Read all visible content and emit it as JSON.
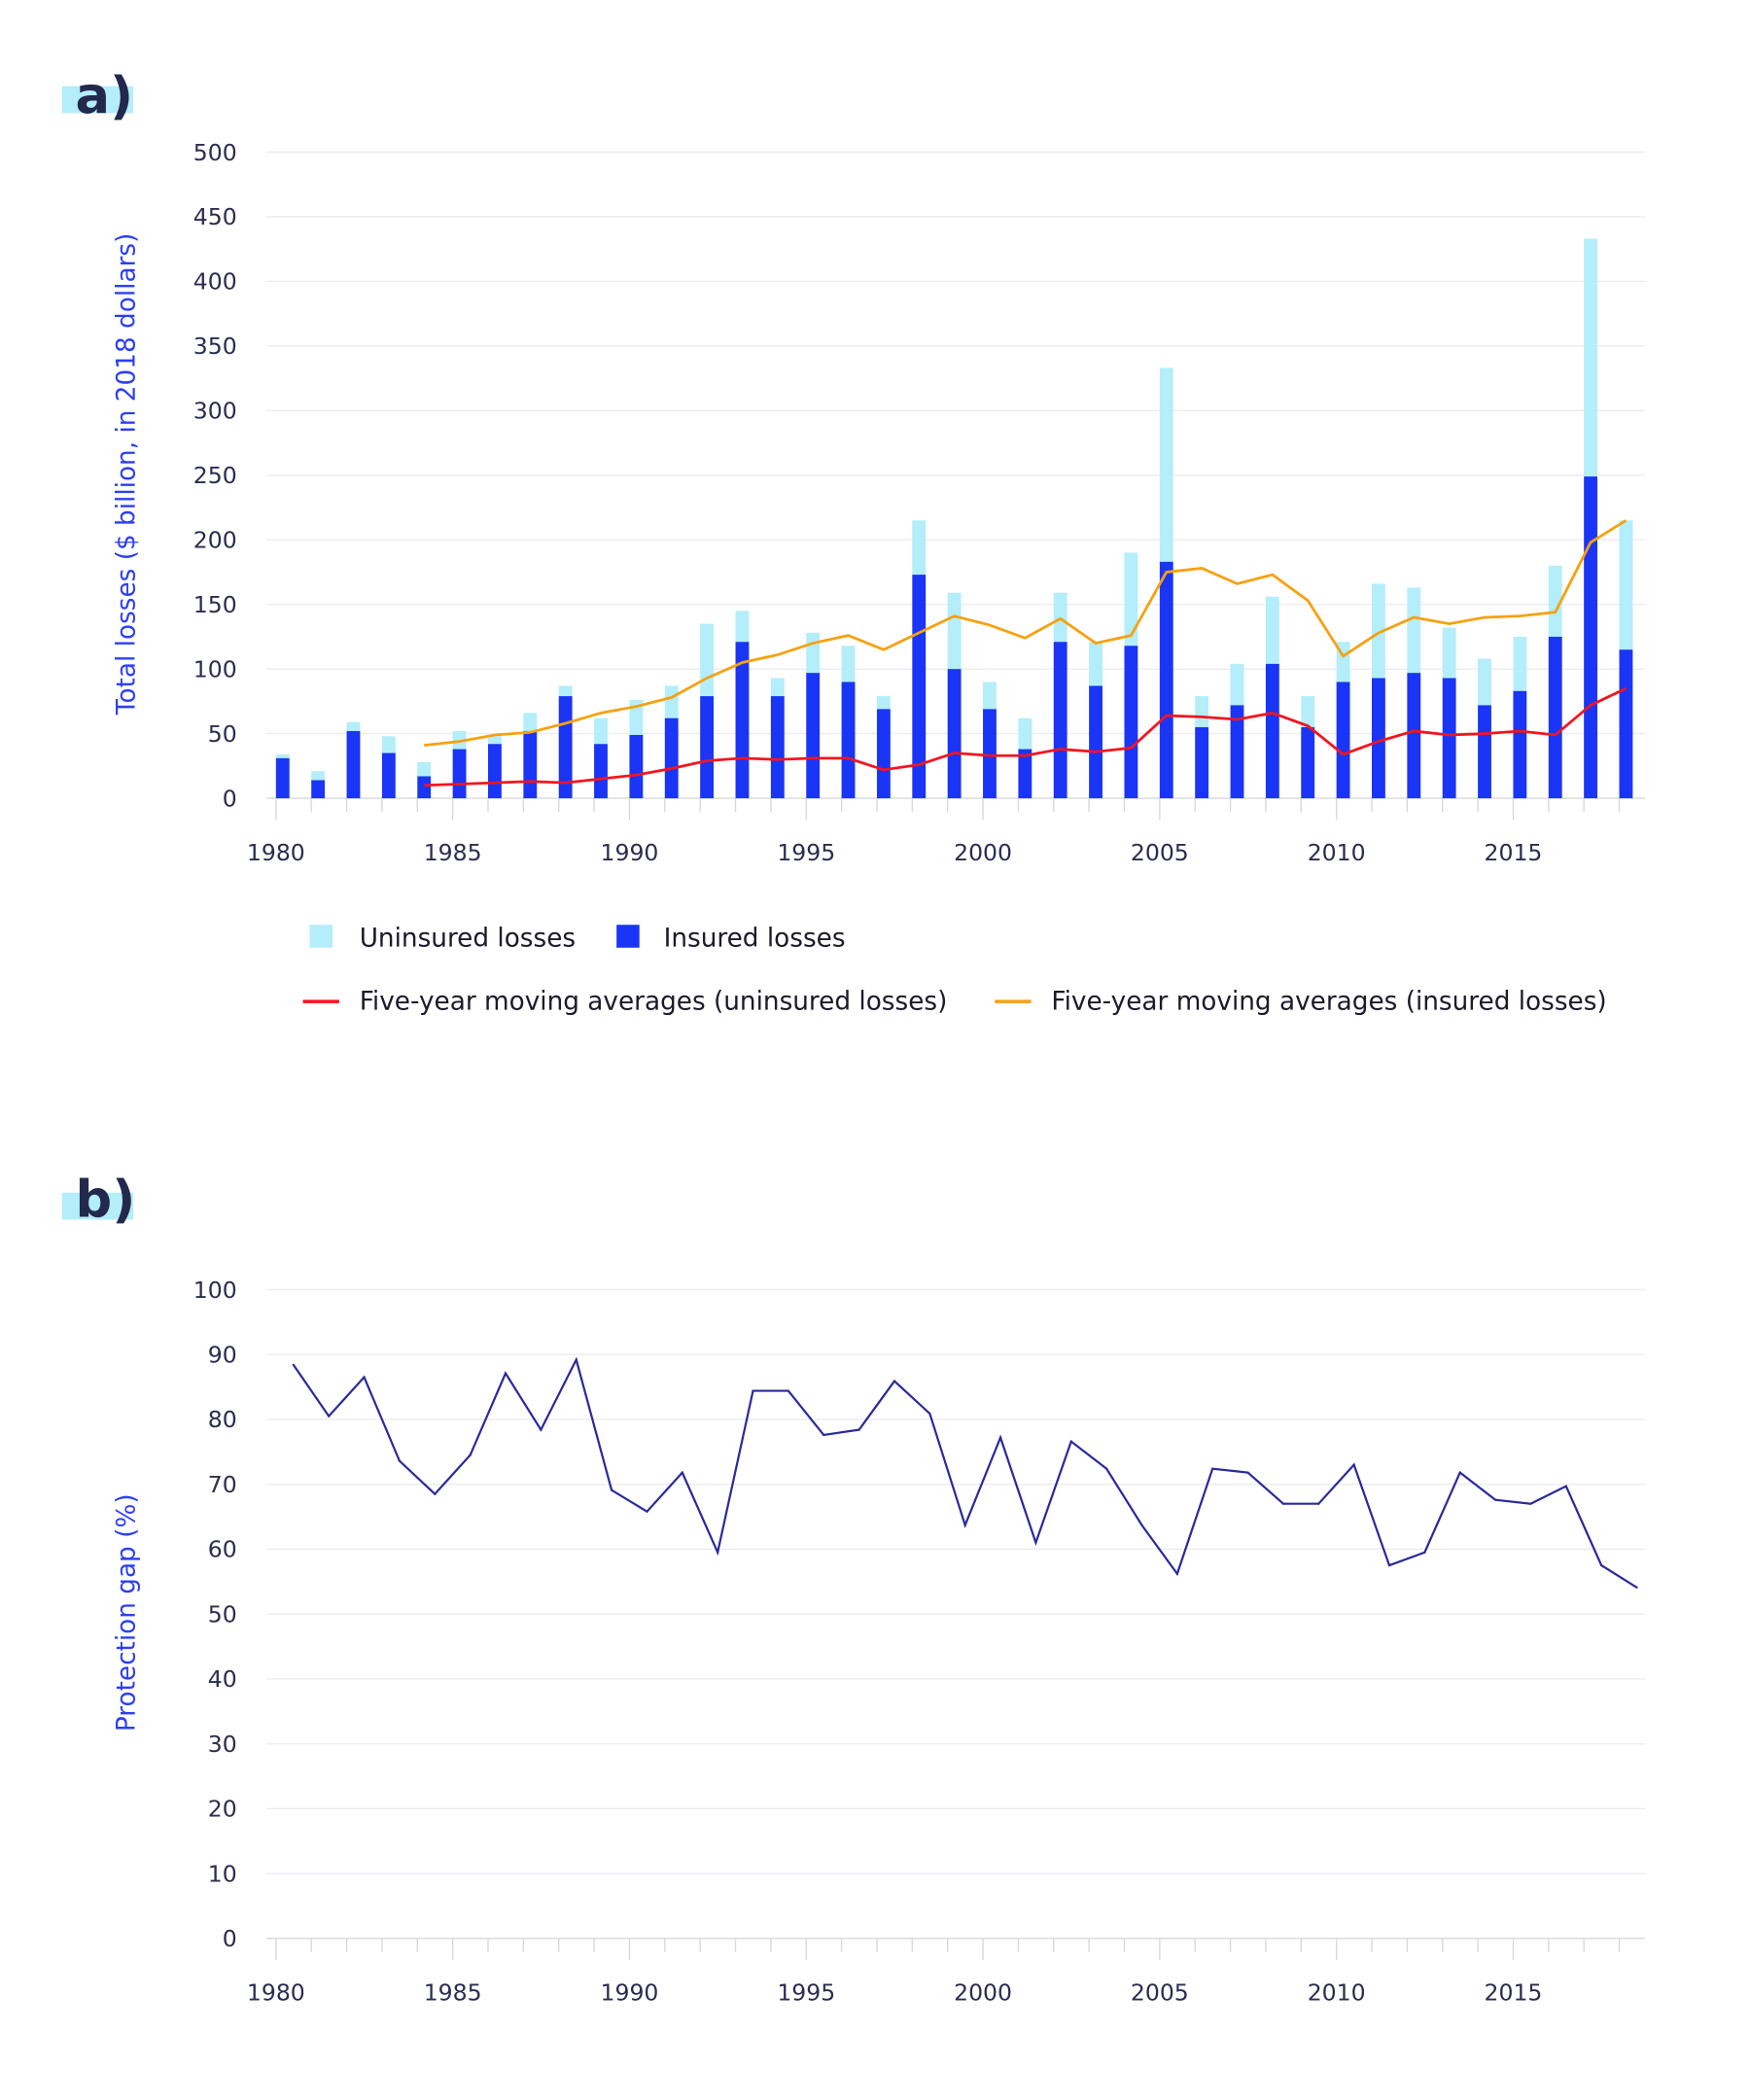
{
  "chart_data": [
    {
      "type": "bar",
      "panel_label": "a)",
      "ylabel": "Total losses ($ billion, in 2018 dollars)",
      "ylim": [
        0,
        500
      ],
      "yticks": [
        0,
        50,
        100,
        150,
        200,
        250,
        300,
        350,
        400,
        450,
        500
      ],
      "xticks": [
        1980,
        1985,
        1990,
        1995,
        2000,
        2005,
        2010,
        2015
      ],
      "grid": true,
      "stacked": true,
      "legend_placement": "bottom",
      "x": [
        1980,
        1981,
        1982,
        1983,
        1984,
        1985,
        1986,
        1987,
        1988,
        1989,
        1990,
        1991,
        1992,
        1993,
        1994,
        1995,
        1996,
        1997,
        1998,
        1999,
        2000,
        2001,
        2002,
        2003,
        2004,
        2005,
        2006,
        2007,
        2008,
        2009,
        2010,
        2011,
        2012,
        2013,
        2014,
        2015,
        2016,
        2017,
        2018
      ],
      "series": [
        {
          "name": "Insured losses",
          "kind": "bar",
          "color": "#1a35f5",
          "values": [
            31,
            14,
            52,
            35,
            17,
            38,
            42,
            52,
            79,
            42,
            49,
            62,
            79,
            121,
            79,
            97,
            90,
            69,
            173,
            100,
            69,
            38,
            121,
            87,
            118,
            183,
            55,
            72,
            104,
            55,
            90,
            93,
            97,
            93,
            72,
            83,
            125,
            249,
            115
          ]
        },
        {
          "name": "Uninsured losses",
          "kind": "bar",
          "color": "#b3eefa",
          "note_total_values": "total height of stacked bar",
          "values": [
            3,
            7,
            7,
            13,
            11,
            14,
            6,
            14,
            8,
            20,
            27,
            25,
            56,
            24,
            14,
            31,
            28,
            10,
            42,
            59,
            21,
            24,
            38,
            34,
            72,
            150,
            24,
            32,
            52,
            24,
            31,
            73,
            66,
            39,
            36,
            42,
            55,
            184,
            100
          ]
        },
        {
          "name": "Five-year moving averages (uninsured losses)",
          "kind": "line",
          "color": "#f5141e",
          "x": [
            1984,
            1985,
            1986,
            1987,
            1988,
            1989,
            1990,
            1991,
            1992,
            1993,
            1994,
            1995,
            1996,
            1997,
            1998,
            1999,
            2000,
            2001,
            2002,
            2003,
            2004,
            2005,
            2006,
            2007,
            2008,
            2009,
            2010,
            2011,
            2012,
            2013,
            2014,
            2015,
            2016,
            2017,
            2018
          ],
          "values": [
            10,
            11,
            12,
            13,
            12,
            15,
            18,
            23,
            29,
            31,
            30,
            31,
            31,
            22,
            26,
            35,
            33,
            33,
            38,
            36,
            39,
            64,
            63,
            61,
            66,
            56,
            34,
            44,
            52,
            49,
            50,
            52,
            49,
            72,
            85
          ]
        },
        {
          "name": "Five-year moving averages (insured losses)",
          "kind": "line",
          "color": "#f7a10f",
          "x": [
            1984,
            1985,
            1986,
            1987,
            1988,
            1989,
            1990,
            1991,
            1992,
            1993,
            1994,
            1995,
            1996,
            1997,
            1998,
            1999,
            2000,
            2001,
            2002,
            2003,
            2004,
            2005,
            2006,
            2007,
            2008,
            2009,
            2010,
            2011,
            2012,
            2013,
            2014,
            2015,
            2016,
            2017,
            2018
          ],
          "values": [
            41,
            44,
            49,
            51,
            58,
            66,
            71,
            78,
            93,
            105,
            111,
            120,
            126,
            115,
            128,
            141,
            134,
            124,
            139,
            120,
            126,
            175,
            178,
            166,
            173,
            153,
            110,
            128,
            140,
            135,
            140,
            141,
            144,
            198,
            215
          ]
        }
      ],
      "legend": [
        "Uninsured losses",
        "Insured losses",
        "Five-year moving averages (uninsured losses)",
        "Five-year moving averages (insured losses)"
      ]
    },
    {
      "type": "line",
      "panel_label": "b)",
      "ylabel": "Protection gap (%)",
      "ylim": [
        0,
        100
      ],
      "yticks": [
        0,
        10,
        20,
        30,
        40,
        50,
        60,
        70,
        80,
        90,
        100
      ],
      "xticks": [
        1980,
        1985,
        1990,
        1995,
        2000,
        2005,
        2010,
        2015
      ],
      "grid": true,
      "series": [
        {
          "color": "#2a2a9a",
          "x": [
            1980,
            1981,
            1982,
            1983,
            1984,
            1985,
            1986,
            1987,
            1988,
            1989,
            1990,
            1991,
            1992,
            1993,
            1994,
            1995,
            1996,
            1997,
            1998,
            1999,
            2000,
            2001,
            2002,
            2003,
            2004,
            2005,
            2006,
            2007,
            2008,
            2009,
            2010,
            2011,
            2012,
            2013,
            2014,
            2015,
            2016,
            2017,
            2018
          ],
          "values": [
            88.4,
            80.5,
            86.5,
            73.6,
            68.5,
            74.5,
            87.1,
            78.4,
            89.2,
            69.1,
            65.8,
            71.8,
            59.5,
            84.4,
            84.4,
            77.6,
            78.4,
            85.9,
            80.9,
            63.7,
            77.2,
            61,
            76.6,
            72.4,
            63.7,
            56.2,
            72.4,
            71.8,
            67,
            67,
            73,
            57.5,
            59.5,
            71.8,
            67.6,
            67,
            69.7,
            57.5,
            54.1
          ]
        }
      ]
    }
  ],
  "colors": {
    "panel_label_bg": "#b3eefa",
    "axis_title": "#2c3ff5",
    "grid": "#ececf0"
  }
}
